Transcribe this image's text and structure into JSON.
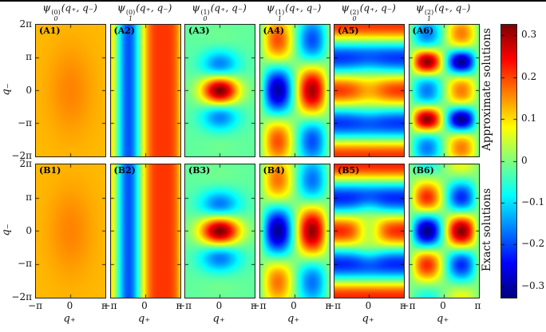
{
  "figure": {
    "xlabel": "q₊",
    "ylabel": "q₋",
    "row_labels": [
      "Approximate solutions",
      "Exact solutions"
    ],
    "x_ticks": [
      "−π",
      "0",
      "π"
    ],
    "y_ticks": [
      "2π",
      "π",
      "0",
      "−π",
      "−2π"
    ],
    "column_titles": [
      {
        "psi": "ψ",
        "sub": "0",
        "sup": "(0)",
        "args": "(q₊, q₋)"
      },
      {
        "psi": "ψ",
        "sub": "1",
        "sup": "(0)",
        "args": "(q₊, q₋)"
      },
      {
        "psi": "ψ",
        "sub": "0",
        "sup": "(1)",
        "args": "(q₊, q₋)"
      },
      {
        "psi": "ψ",
        "sub": "1",
        "sup": "(1)",
        "args": "(q₊, q₋)"
      },
      {
        "psi": "ψ",
        "sub": "0",
        "sup": "(2)",
        "args": "(q₊, q₋)"
      },
      {
        "psi": "ψ",
        "sub": "1",
        "sup": "(2)",
        "args": "(q₊, q₋)"
      }
    ],
    "colorbar": {
      "colormap": "jet",
      "ticks": [
        "0.3",
        "0.2",
        "0.1",
        "0",
        "−0.1",
        "−0.2",
        "−0.3"
      ],
      "tick_values": [
        0.3,
        0.2,
        0.1,
        0.0,
        -0.1,
        -0.2,
        -0.3
      ],
      "vmin": -0.325,
      "vmax": 0.325
    }
  },
  "chart_data": {
    "type": "heatmap",
    "colormap": "jet",
    "value_range": [
      -0.325,
      0.325
    ],
    "u_axis": {
      "label": "q₊",
      "range": [
        -3.14159,
        3.14159
      ],
      "ticks": [
        "−π",
        "0",
        "π"
      ]
    },
    "v_axis": {
      "label": "q₋",
      "range": [
        -6.28318,
        6.28318
      ],
      "ticks": [
        "2π",
        "π",
        "0",
        "−π",
        "−2π"
      ]
    },
    "rows": [
      {
        "id": "A",
        "label": "Approximate solutions"
      },
      {
        "id": "B",
        "label": "Exact solutions"
      }
    ],
    "panels": [
      {
        "tag": "(A1)",
        "row": 0,
        "col": 0,
        "desc": "uniform yellow, faint orange peak at origin",
        "type": "gauss",
        "params": {
          "off": 0.125,
          "amp": 0.035,
          "su": 4.0,
          "sv": 18
        }
      },
      {
        "tag": "(A2)",
        "row": 0,
        "col": 1,
        "desc": "vertical lobes: negative (blue) q+<0, positive (orange) q+>0",
        "type": "fourier_u",
        "params": {
          "a": 0.06,
          "b": 0.2,
          "c": 0.05
        }
      },
      {
        "tag": "(A3)",
        "row": 0,
        "col": 2,
        "desc": "strong red peak at center, blue lobes above/below",
        "type": "cos_gauss",
        "params": {
          "off": -0.02,
          "amp": 0.345,
          "su": 2.8,
          "kv": 1.0,
          "sv": 9
        }
      },
      {
        "tag": "(A4)",
        "row": 0,
        "col": 3,
        "desc": "blue left / red right central lobes, sign-flipped corners",
        "type": "sin_cos",
        "params": {
          "amp": 0.3,
          "kv": 0.588,
          "sv": 60
        }
      },
      {
        "tag": "(A5)",
        "row": 0,
        "col": 4,
        "desc": "horizontal orange/blue bands, slight central pinch",
        "type": "bands",
        "params": {
          "amp": 0.21,
          "c0": 0.35,
          "sv": 8,
          "w": 2.2
        }
      },
      {
        "tag": "(A6)",
        "row": 0,
        "col": 5,
        "desc": "2x5 checkerboard of red/blue lobes",
        "type": "checker",
        "params": {
          "amp": 0.3,
          "kv": 1.14,
          "k2": 0.57,
          "e0": 0.55,
          "e1": 0.5
        }
      },
      {
        "tag": "(B1)",
        "row": 1,
        "col": 0,
        "desc": "uniform yellow, faint orange peak at origin",
        "type": "gauss",
        "params": {
          "off": 0.125,
          "amp": 0.035,
          "su": 4.0,
          "sv": 18
        }
      },
      {
        "tag": "(B2)",
        "row": 1,
        "col": 1,
        "desc": "vertical lobes: negative (blue) q+<0, positive (orange) q+>0",
        "type": "fourier_u",
        "params": {
          "a": 0.06,
          "b": 0.2,
          "c": 0.05
        }
      },
      {
        "tag": "(B3)",
        "row": 1,
        "col": 2,
        "desc": "strong red peak at center, blue lobes above/below",
        "type": "cos_gauss",
        "params": {
          "off": -0.02,
          "amp": 0.345,
          "su": 3.3,
          "kv": 1.0,
          "sv": 9.5
        }
      },
      {
        "tag": "(B4)",
        "row": 1,
        "col": 3,
        "desc": "blue left / red right central lobes, orange/cyan corners",
        "type": "sin_cos",
        "params": {
          "amp": 0.31,
          "kv": 0.57,
          "sv": 45
        }
      },
      {
        "tag": "(B5)",
        "row": 1,
        "col": 4,
        "desc": "orange/blue bands with strong X-shaped pinch at center",
        "type": "bands",
        "params": {
          "amp": 0.22,
          "c0": 0.8,
          "sv": 6,
          "w": 1.6
        }
      },
      {
        "tag": "(B6)",
        "row": 1,
        "col": 5,
        "desc": "2x3 checkerboard, strong blue-left/red-right center pair",
        "type": "sin_cos",
        "params": {
          "amp": 0.32,
          "kv": 0.9,
          "sv": 30
        }
      }
    ]
  }
}
